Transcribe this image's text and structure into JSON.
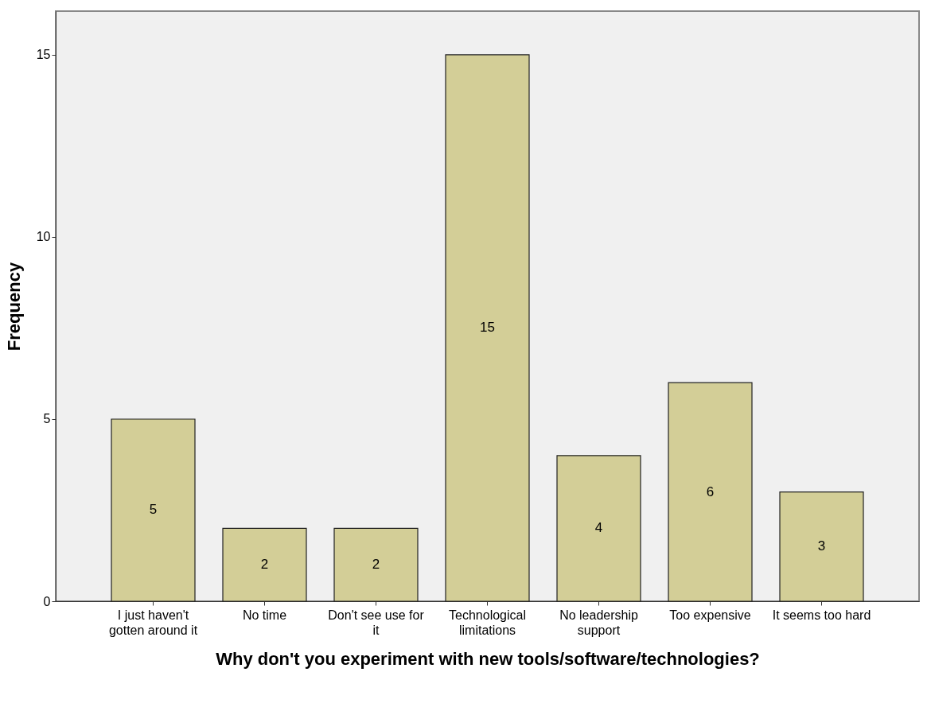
{
  "chart_data": {
    "type": "bar",
    "xlabel": "Why don't you experiment with new tools/software/technologies?",
    "ylabel": "Frequency",
    "categories": [
      "I just haven't gotten around it",
      "No time",
      "Don't see use for it",
      "Technological limitations",
      "No leadership support",
      "Too expensive",
      "It seems too hard"
    ],
    "values": [
      5,
      2,
      2,
      15,
      4,
      6,
      3
    ],
    "color": "#d3ce97",
    "ylim": [
      0,
      16.2
    ],
    "yticks": [
      0,
      5,
      10,
      15
    ],
    "data_labels": true
  }
}
